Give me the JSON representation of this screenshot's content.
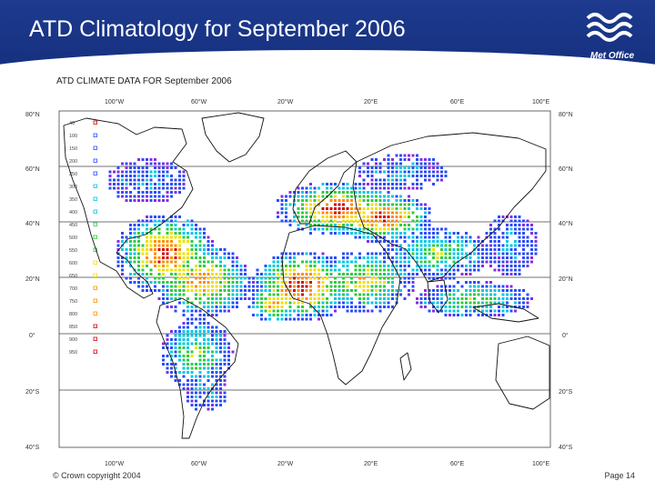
{
  "slide": {
    "title": "ATD Climatology for September 2006",
    "logo_text": "Met Office",
    "copyright": "© Crown copyright 2004",
    "page": "Page 14"
  },
  "map": {
    "title": "ATD CLIMATE DATA FOR September 2006",
    "lon_labels": [
      "100°W",
      "60°W",
      "20°W",
      "20°E",
      "60°E",
      "100°E"
    ],
    "lat_labels": [
      "80°N",
      "60°N",
      "40°N",
      "20°N",
      "0°",
      "20°S",
      "40°S"
    ],
    "legend": [
      "40",
      "100",
      "150",
      "200",
      "250",
      "300",
      "350",
      "400",
      "450",
      "500",
      "550",
      "600",
      "650",
      "700",
      "750",
      "800",
      "850",
      "900",
      "950"
    ],
    "colors": {
      "purple": "#8a2be2",
      "blue": "#2a4bff",
      "cyan": "#00c8e6",
      "green": "#2ecc40",
      "yellow": "#f0e000",
      "orange": "#ff8c00",
      "red": "#d40000"
    }
  }
}
